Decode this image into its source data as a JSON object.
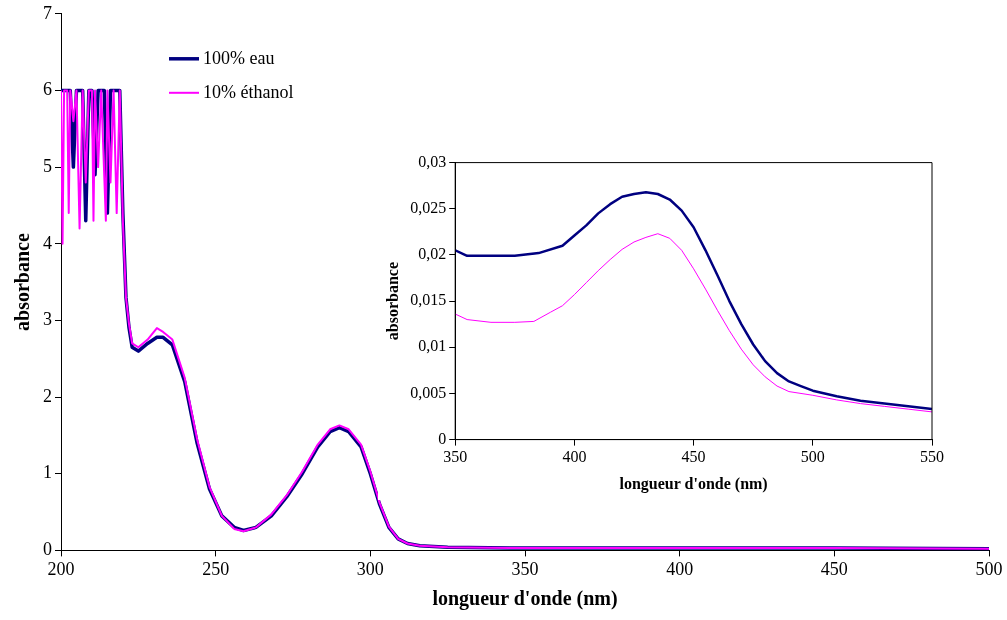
{
  "chart_data": [
    {
      "type": "line",
      "xlabel": "longueur d'onde (nm)",
      "ylabel": "absorbance",
      "xlim": [
        200,
        500
      ],
      "ylim": [
        0,
        7
      ],
      "xticks": [
        200,
        250,
        300,
        350,
        400,
        450,
        500
      ],
      "yticks": [
        0,
        1,
        2,
        3,
        4,
        5,
        6,
        7
      ],
      "grid": false,
      "legend": "top left",
      "marker": "none",
      "line_style": "solid",
      "series": [
        {
          "name": "100% eau",
          "color": "#000080",
          "x": [
            200,
            201,
            203,
            204,
            205,
            207,
            208,
            209,
            210,
            211,
            212,
            214,
            215,
            216,
            218,
            219,
            220,
            221,
            222,
            223,
            225,
            228,
            231,
            233,
            236,
            240,
            244,
            248,
            252,
            256,
            259,
            263,
            268,
            273,
            278,
            283,
            287,
            290,
            293,
            297,
            300,
            303,
            306,
            309,
            312,
            316,
            325,
            350,
            400,
            450,
            500
          ],
          "values": [
            6,
            6,
            6,
            5,
            6,
            6,
            4.3,
            6,
            6,
            4.9,
            6,
            6,
            4.4,
            6,
            6,
            6,
            4.4,
            3.3,
            2.9,
            2.65,
            2.6,
            2.7,
            2.78,
            2.78,
            2.68,
            2.2,
            1.4,
            0.8,
            0.45,
            0.3,
            0.26,
            0.3,
            0.45,
            0.7,
            1.0,
            1.35,
            1.55,
            1.6,
            1.55,
            1.35,
            1.0,
            0.6,
            0.3,
            0.15,
            0.09,
            0.06,
            0.04,
            0.03,
            0.03,
            0.03,
            0.02
          ]
        },
        {
          "name": "10% éthanol",
          "color": "#ff00ff",
          "x": [
            200,
            200.5,
            201,
            202,
            202.5,
            203,
            204,
            205,
            206,
            207,
            208,
            209,
            210,
            210.5,
            211,
            212,
            213,
            214.5,
            215,
            216,
            217,
            218,
            219,
            220,
            221,
            222,
            223,
            225,
            228,
            231,
            233,
            236,
            240,
            244,
            248,
            252,
            256,
            259,
            263,
            268,
            273,
            278,
            283,
            287,
            290,
            293,
            297,
            300,
            303,
            306,
            309,
            312,
            316,
            325,
            350,
            400,
            450,
            500
          ],
          "values": [
            6,
            4.0,
            6,
            6,
            4.4,
            6,
            5.6,
            6,
            4.2,
            6,
            4.8,
            6,
            6,
            4.3,
            6,
            5.0,
            6,
            4.3,
            6,
            4.8,
            6,
            4.4,
            6,
            4.3,
            3.3,
            2.95,
            2.7,
            2.65,
            2.75,
            2.9,
            2.85,
            2.75,
            2.25,
            1.45,
            0.83,
            0.45,
            0.28,
            0.25,
            0.3,
            0.47,
            0.72,
            1.03,
            1.38,
            1.58,
            1.63,
            1.58,
            1.38,
            1.03,
            0.62,
            0.31,
            0.15,
            0.09,
            0.06,
            0.04,
            0.03,
            0.03,
            0.03,
            0.02
          ]
        }
      ]
    },
    {
      "type": "line",
      "xlabel": "longueur d'onde (nm)",
      "ylabel": "absorbance",
      "xlim": [
        350,
        550
      ],
      "ylim": [
        0,
        0.03
      ],
      "xticks": [
        350,
        400,
        450,
        500,
        550
      ],
      "yticks": [
        0,
        {
          "value": 0.005,
          "label": "0,005"
        },
        {
          "value": 0.01,
          "label": "0,01"
        },
        {
          "value": 0.015,
          "label": "0,015"
        },
        {
          "value": 0.02,
          "label": "0,02"
        },
        {
          "value": 0.025,
          "label": "0,025"
        },
        {
          "value": 0.03,
          "label": "0,03"
        }
      ],
      "grid": false,
      "legend": false,
      "marker": "none",
      "line_style": "solid",
      "series": [
        {
          "color": "#000080",
          "x": [
            350,
            355,
            365,
            375,
            385,
            395,
            400,
            405,
            410,
            415,
            420,
            425,
            430,
            435,
            440,
            445,
            450,
            455,
            460,
            465,
            470,
            475,
            480,
            485,
            490,
            495,
            500,
            510,
            520,
            530,
            540,
            550
          ],
          "values": [
            0.0205,
            0.0199,
            0.0199,
            0.0199,
            0.0202,
            0.021,
            0.0221,
            0.0232,
            0.0245,
            0.0255,
            0.0263,
            0.0266,
            0.0268,
            0.0266,
            0.026,
            0.0248,
            0.023,
            0.0205,
            0.0178,
            0.015,
            0.0125,
            0.0103,
            0.0085,
            0.0072,
            0.0063,
            0.0058,
            0.0053,
            0.0047,
            0.0042,
            0.0039,
            0.0036,
            0.0033
          ]
        },
        {
          "color": "#ff00ff",
          "x": [
            350,
            355,
            365,
            375,
            383,
            390,
            395,
            400,
            405,
            410,
            415,
            420,
            425,
            430,
            435,
            440,
            445,
            450,
            455,
            460,
            465,
            470,
            475,
            480,
            485,
            490,
            500,
            510,
            520,
            530,
            540,
            550
          ],
          "values": [
            0.0136,
            0.013,
            0.0127,
            0.0127,
            0.0128,
            0.0138,
            0.0145,
            0.0157,
            0.017,
            0.0183,
            0.0195,
            0.0206,
            0.0214,
            0.0219,
            0.0223,
            0.0218,
            0.0205,
            0.0185,
            0.0163,
            0.014,
            0.0118,
            0.0098,
            0.0081,
            0.0068,
            0.0058,
            0.0052,
            0.0048,
            0.0043,
            0.0039,
            0.0036,
            0.0033,
            0.003
          ]
        }
      ]
    }
  ]
}
